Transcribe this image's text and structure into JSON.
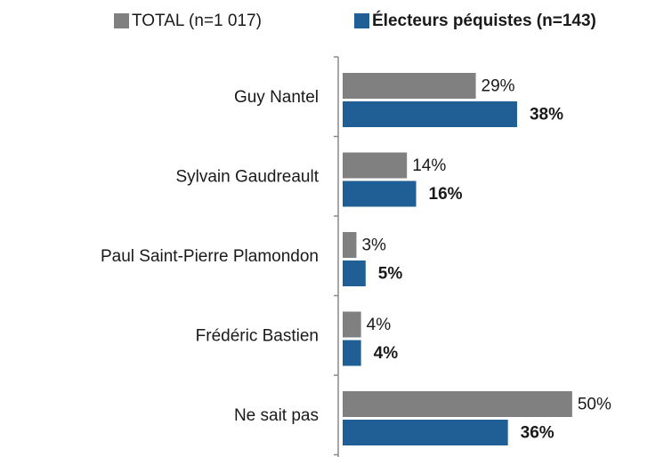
{
  "chart_data": {
    "type": "hbar",
    "categories": [
      "Guy Nantel",
      "Sylvain Gaudreault",
      "Paul Saint-Pierre Plamondon",
      "Frédéric Bastien",
      "Ne sait pas"
    ],
    "series": [
      {
        "name": "TOTAL (n=1 017)",
        "color": "#808080",
        "values": [
          29,
          14,
          3,
          4,
          50
        ],
        "value_labels": [
          "29%",
          "14%",
          "3%",
          "4%",
          "50%"
        ]
      },
      {
        "name": "Électeurs péquistes (n=143)",
        "color": "#1f5f96",
        "values": [
          38,
          16,
          5,
          4,
          36
        ],
        "value_labels": [
          "38%",
          "16%",
          "5%",
          "4%",
          "36%"
        ]
      }
    ],
    "xlim": [
      0,
      70
    ],
    "legend": "top"
  }
}
